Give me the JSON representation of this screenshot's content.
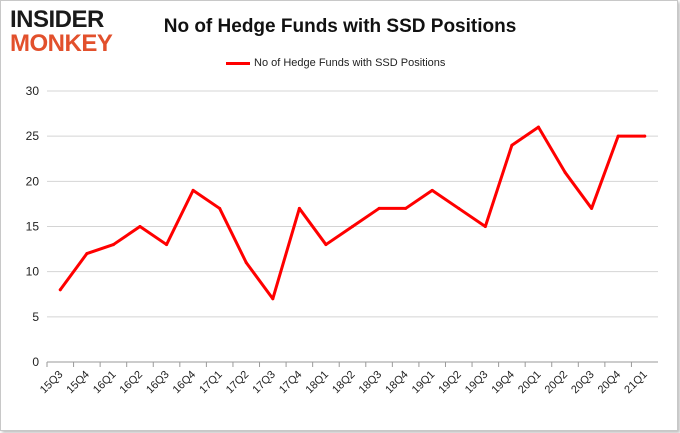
{
  "logo": {
    "line1": "INSIDER",
    "line2": "MONKEY"
  },
  "chart_data": {
    "type": "line",
    "title": "No of Hedge Funds with SSD Positions",
    "xlabel": "",
    "ylabel": "",
    "ylim": [
      0,
      30
    ],
    "yticks": [
      0,
      5,
      10,
      15,
      20,
      25,
      30
    ],
    "grid": true,
    "legend_position": "top-center",
    "categories": [
      "15Q3",
      "15Q4",
      "16Q1",
      "16Q2",
      "16Q3",
      "16Q4",
      "17Q1",
      "17Q2",
      "17Q3",
      "17Q4",
      "18Q1",
      "18Q2",
      "18Q3",
      "18Q4",
      "19Q1",
      "19Q2",
      "19Q3",
      "19Q4",
      "20Q1",
      "20Q2",
      "20Q3",
      "20Q4",
      "21Q1"
    ],
    "series": [
      {
        "name": "No of Hedge Funds with SSD Positions",
        "color": "#ff0000",
        "values": [
          8,
          12,
          13,
          15,
          13,
          19,
          17,
          11,
          7,
          17,
          13,
          15,
          17,
          17,
          19,
          17,
          15,
          24,
          26,
          21,
          17,
          25,
          25
        ]
      }
    ]
  }
}
